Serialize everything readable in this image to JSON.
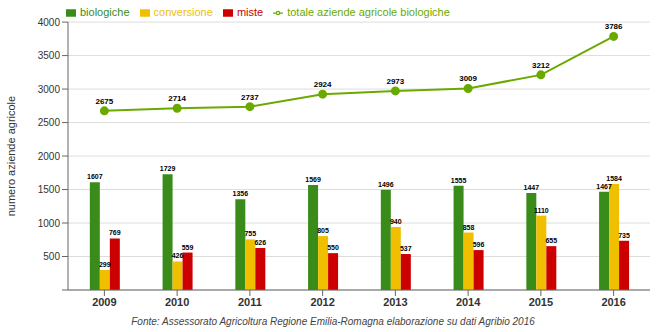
{
  "chart_data": {
    "type": "bar",
    "categories": [
      2009,
      2010,
      2011,
      2012,
      2013,
      2014,
      2015,
      2016
    ],
    "series": [
      {
        "name": "biologiche",
        "type": "bar",
        "color": "#3a8c1a",
        "values": [
          1607,
          1729,
          1356,
          1569,
          1496,
          1555,
          1447,
          1467
        ]
      },
      {
        "name": "conversione",
        "type": "bar",
        "color": "#f0c000",
        "values": [
          299,
          426,
          755,
          805,
          940,
          858,
          1110,
          1584
        ]
      },
      {
        "name": "miste",
        "type": "bar",
        "color": "#cc0000",
        "values": [
          769,
          559,
          626,
          550,
          537,
          596,
          655,
          735
        ]
      },
      {
        "name": "totale aziende agricole biologiche",
        "type": "line",
        "color": "#6aaa00",
        "marker": "circle",
        "values": [
          2675,
          2714,
          2737,
          2924,
          2973,
          3009,
          3212,
          3786
        ]
      }
    ],
    "ylabel": "numero aziende agricole",
    "ylim": [
      0,
      4000
    ],
    "yticks": [
      {
        "value": 0,
        "label": null
      },
      500,
      1000,
      1500,
      2000,
      2500,
      3000,
      3500,
      4000
    ],
    "grid": true,
    "legend": "upper left",
    "data_labels": true,
    "annotations": [
      "Fonte: Assessorato Agricoltura Regione Emilia-Romagna elaborazione su dati Agribio 2016"
    ]
  }
}
